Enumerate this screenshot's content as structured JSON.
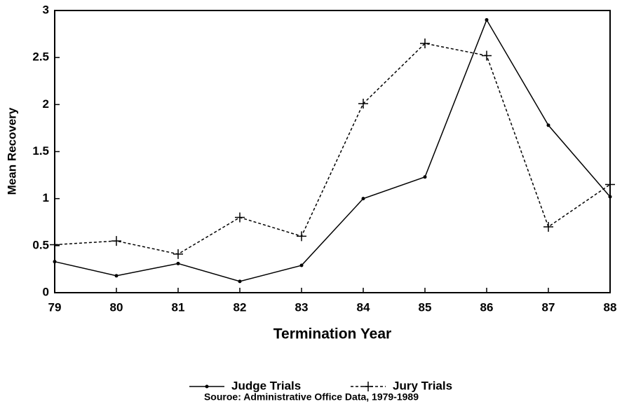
{
  "chart_data": {
    "type": "line",
    "x_label": "Termination Year",
    "y_label": "Mean Recovery",
    "source": "Souroe: Administrative Office Data, 1979-1989",
    "x": [
      79,
      80,
      81,
      82,
      83,
      84,
      85,
      86,
      87,
      88
    ],
    "series": [
      {
        "name": "Judge Trials",
        "color": "#000000",
        "line_style": "solid",
        "marker": "dot",
        "values": [
          0.33,
          0.18,
          0.31,
          0.12,
          0.29,
          1.0,
          1.23,
          2.9,
          1.78,
          1.02
        ]
      },
      {
        "name": "Jury Trials",
        "color": "#000000",
        "line_style": "dashed",
        "marker": "plus",
        "values": [
          0.51,
          0.55,
          0.41,
          0.8,
          0.6,
          2.01,
          2.65,
          2.52,
          0.7,
          1.15
        ]
      }
    ],
    "xlim": [
      79,
      88
    ],
    "xticks": [
      79,
      80,
      81,
      82,
      83,
      84,
      85,
      86,
      87,
      88
    ],
    "ylim": [
      0,
      3
    ],
    "yticks": [
      0,
      0.5,
      1,
      1.5,
      2,
      2.5,
      3
    ],
    "grid": false,
    "legend": "bottom"
  }
}
